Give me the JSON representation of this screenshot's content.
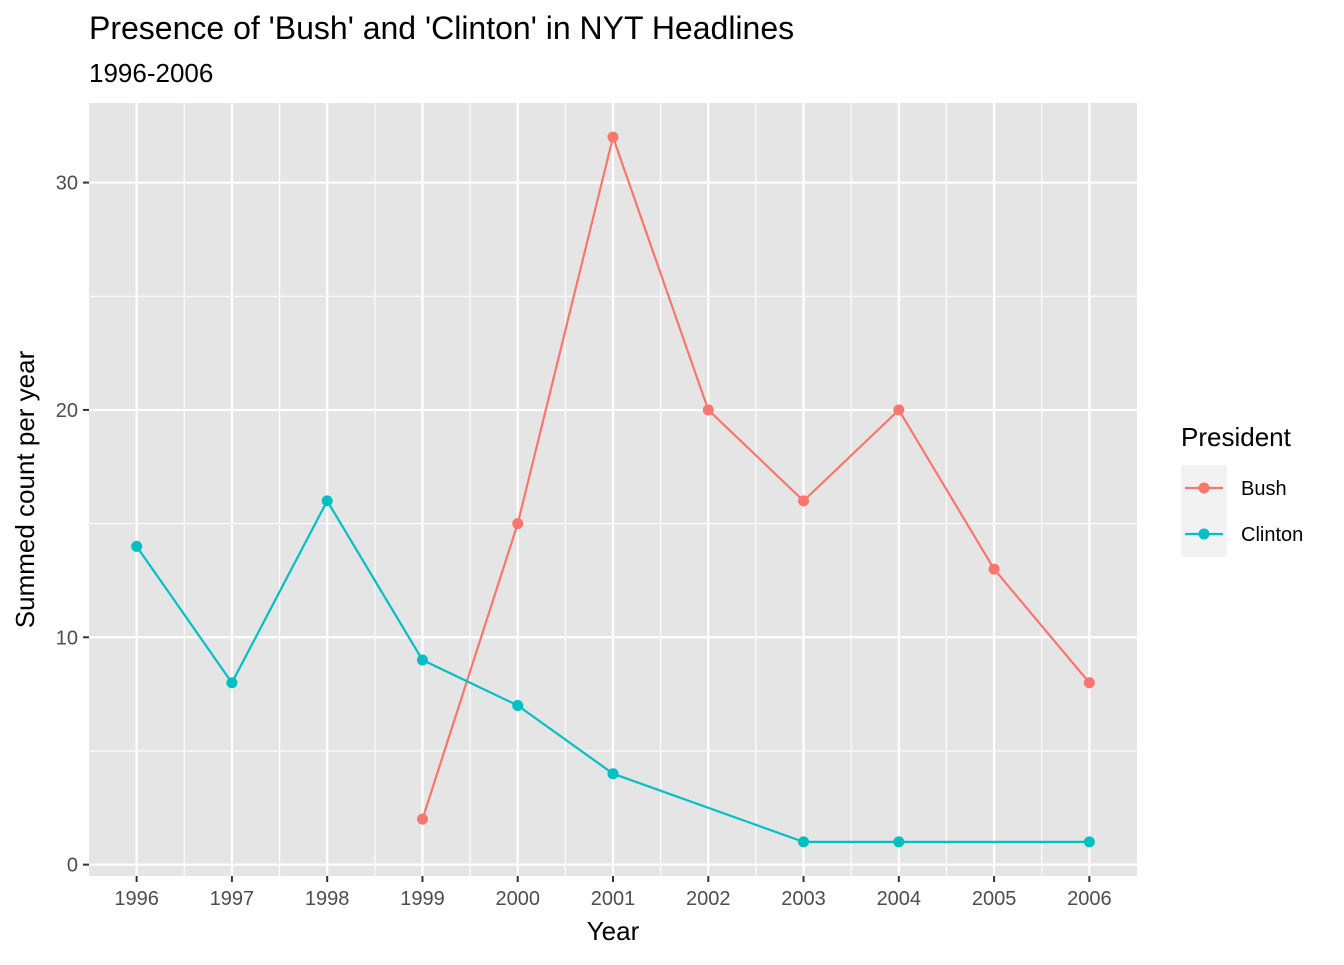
{
  "chart_data": {
    "type": "line",
    "title": "Presence of 'Bush' and 'Clinton' in NYT Headlines",
    "subtitle": "1996-2006",
    "xlabel": "Year",
    "ylabel": "Summed count per year",
    "x_ticks": [
      "1996",
      "1997",
      "1998",
      "1999",
      "2000",
      "2001",
      "2002",
      "2003",
      "2004",
      "2005",
      "2006"
    ],
    "y_ticks": [
      "0",
      "10",
      "20",
      "30"
    ],
    "xlim": [
      1995.5,
      2006.5
    ],
    "ylim": [
      -0.5,
      33.5
    ],
    "grid": true,
    "background": "#e5e5e5",
    "legend": {
      "title": "President",
      "placement": "right"
    },
    "series": [
      {
        "name": "Bush",
        "color": "#f8766d",
        "x": [
          1999,
          2000,
          2001,
          2002,
          2003,
          2004,
          2005,
          2006
        ],
        "y": [
          2,
          15,
          32,
          20,
          16,
          20,
          13,
          8
        ]
      },
      {
        "name": "Clinton",
        "color": "#00bfc4",
        "x": [
          1996,
          1997,
          1998,
          1999,
          2000,
          2001,
          2003,
          2004,
          2006
        ],
        "y": [
          14,
          8,
          16,
          9,
          7,
          4,
          1,
          1,
          1
        ]
      }
    ]
  }
}
